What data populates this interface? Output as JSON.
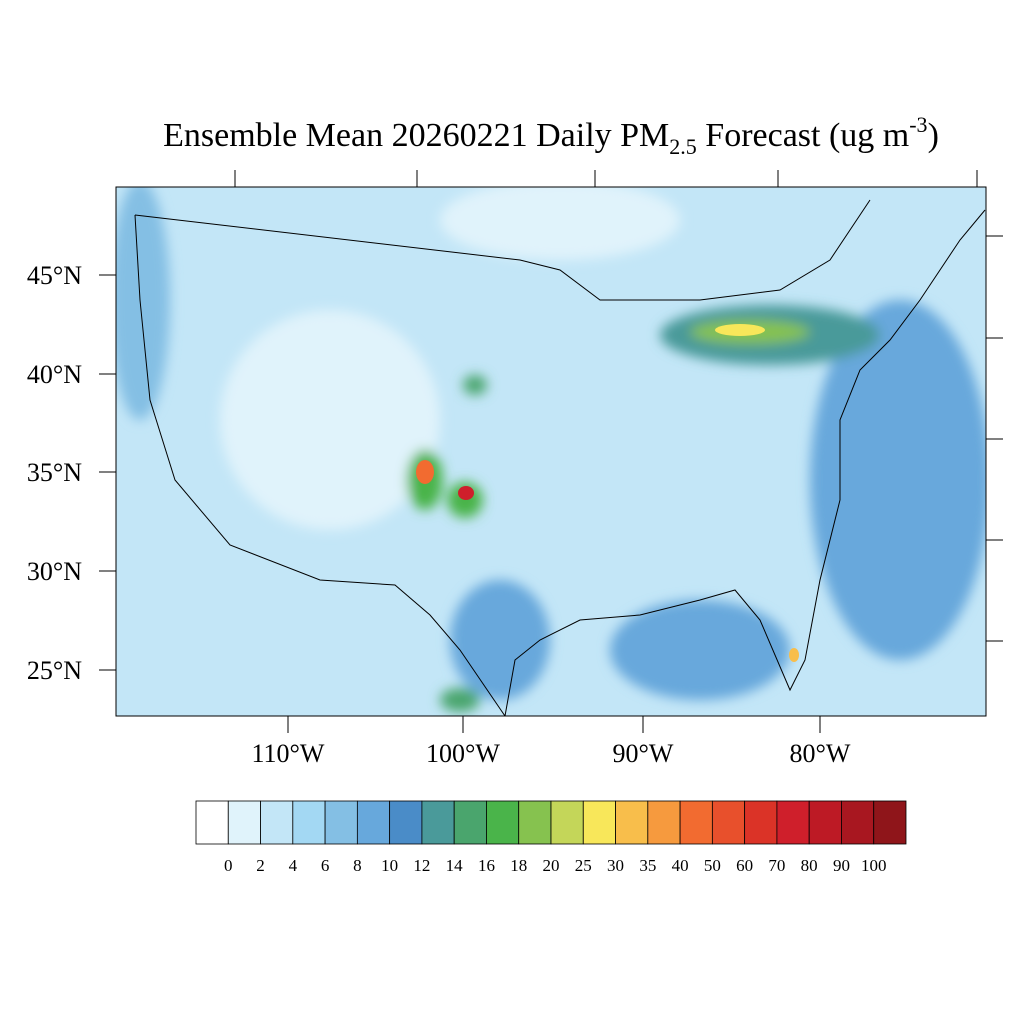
{
  "title": {
    "main": "Ensemble Mean 20260221 Daily PM",
    "sub": "2.5",
    "rest": " Forecast (ug m",
    "sup": "-3",
    "end": ")"
  },
  "lat_labels": [
    "45°N",
    "40°N",
    "35°N",
    "30°N",
    "25°N"
  ],
  "lon_labels": [
    "110°W",
    "100°W",
    "90°W",
    "80°W"
  ],
  "colorbar": {
    "labels": [
      0,
      2,
      4,
      6,
      8,
      10,
      12,
      14,
      16,
      18,
      20,
      25,
      30,
      35,
      40,
      50,
      60,
      70,
      80,
      90,
      100
    ],
    "colors": [
      "#ffffff",
      "#e0f3fb",
      "#c3e6f7",
      "#a3d8f3",
      "#84bfe4",
      "#67a8dc",
      "#4a8cc8",
      "#4a9a9a",
      "#4aa56d",
      "#4ab44a",
      "#86c24f",
      "#c4d659",
      "#f8e75a",
      "#f8be4b",
      "#f69a3e",
      "#f26b30",
      "#e8502c",
      "#db3327",
      "#cf1f2b",
      "#bd1a25",
      "#a81720",
      "#8f151a"
    ]
  }
}
